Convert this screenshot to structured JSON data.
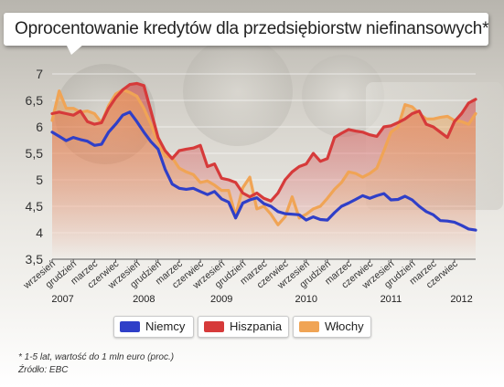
{
  "title": "Oprocentowanie kredytów dla przedsiębiorstw niefinansowych*",
  "footnote": "*  1-5 lat, wartość do 1 mln euro (proc.)",
  "source": "Źródło: EBC",
  "legend": [
    {
      "name": "Niemcy",
      "color": "#2f3fc8"
    },
    {
      "name": "Hiszpania",
      "color": "#d63a3a"
    },
    {
      "name": "Włochy",
      "color": "#f0a455"
    }
  ],
  "chart_data": {
    "type": "line",
    "title": "Oprocentowanie kredytów dla przedsiębiorstw niefinansowych*",
    "xlabel": "",
    "ylabel": "",
    "ylim": [
      3.5,
      7
    ],
    "y_ticks": [
      "3,5",
      "4",
      "4,5",
      "5",
      "5,5",
      "6",
      "6,5",
      "7"
    ],
    "y_tick_values": [
      3.5,
      4,
      4.5,
      5,
      5.5,
      6,
      6.5,
      7
    ],
    "grid": true,
    "legend_position": "bottom",
    "x_tick_labels": [
      "wrzesień",
      "grudzień",
      "marzec",
      "czerwiec",
      "wrzesień",
      "grudzień",
      "marzec",
      "czerwiec",
      "wrzesień",
      "grudzień",
      "marzec",
      "czerwiec",
      "wrzesień",
      "grudzień",
      "marzec",
      "czerwiec",
      "wrzesień",
      "grudzień",
      "marzec",
      "czerwiec"
    ],
    "x_tick_months": [
      0,
      3,
      6,
      9,
      12,
      15,
      18,
      21,
      24,
      27,
      30,
      33,
      36,
      39,
      42,
      45,
      48,
      51,
      54,
      57
    ],
    "year_labels": [
      "2007",
      "2008",
      "2009",
      "2010",
      "2011",
      "2012"
    ],
    "year_label_months": [
      1.5,
      13,
      24,
      36,
      48,
      58
    ],
    "x": [
      "2007-09",
      "2007-10",
      "2007-11",
      "2007-12",
      "2008-01",
      "2008-02",
      "2008-03",
      "2008-04",
      "2008-05",
      "2008-06",
      "2008-07",
      "2008-08",
      "2008-09",
      "2008-10",
      "2008-11",
      "2008-12",
      "2009-01",
      "2009-02",
      "2009-03",
      "2009-04",
      "2009-05",
      "2009-06",
      "2009-07",
      "2009-08",
      "2009-09",
      "2009-10",
      "2009-11",
      "2009-12",
      "2010-01",
      "2010-02",
      "2010-03",
      "2010-04",
      "2010-05",
      "2010-06",
      "2010-07",
      "2010-08",
      "2010-09",
      "2010-10",
      "2010-11",
      "2010-12",
      "2011-01",
      "2011-02",
      "2011-03",
      "2011-04",
      "2011-05",
      "2011-06",
      "2011-07",
      "2011-08",
      "2011-09",
      "2011-10",
      "2011-11",
      "2011-12",
      "2012-01",
      "2012-02",
      "2012-03",
      "2012-04",
      "2012-05",
      "2012-06",
      "2012-07",
      "2012-08",
      "2012-09"
    ],
    "series": [
      {
        "name": "Niemcy",
        "color": "#2f3fc8",
        "values": [
          5.9,
          5.82,
          5.74,
          5.8,
          5.76,
          5.73,
          5.65,
          5.67,
          5.9,
          6.05,
          6.22,
          6.28,
          6.1,
          5.9,
          5.72,
          5.58,
          5.2,
          4.92,
          4.84,
          4.82,
          4.84,
          4.78,
          4.72,
          4.78,
          4.64,
          4.58,
          4.28,
          4.56,
          4.62,
          4.66,
          4.55,
          4.5,
          4.4,
          4.36,
          4.35,
          4.34,
          4.24,
          4.3,
          4.25,
          4.24,
          4.38,
          4.5,
          4.56,
          4.63,
          4.7,
          4.65,
          4.7,
          4.74,
          4.62,
          4.63,
          4.69,
          4.62,
          4.5,
          4.4,
          4.34,
          4.23,
          4.22,
          4.2,
          4.14,
          4.07,
          4.05
        ]
      },
      {
        "name": "Hiszpania",
        "color": "#d63a3a",
        "values": [
          6.25,
          6.28,
          6.25,
          6.22,
          6.3,
          6.1,
          6.05,
          6.08,
          6.35,
          6.55,
          6.7,
          6.8,
          6.82,
          6.78,
          6.3,
          5.8,
          5.55,
          5.4,
          5.55,
          5.58,
          5.6,
          5.65,
          5.25,
          5.3,
          5.03,
          5.0,
          4.95,
          4.75,
          4.68,
          4.75,
          4.65,
          4.6,
          4.75,
          5.0,
          5.15,
          5.25,
          5.3,
          5.5,
          5.35,
          5.4,
          5.8,
          5.88,
          5.95,
          5.92,
          5.9,
          5.85,
          5.82,
          6.0,
          6.02,
          6.08,
          6.15,
          6.25,
          6.3,
          6.05,
          6.0,
          5.9,
          5.8,
          6.1,
          6.25,
          6.45,
          6.52
        ]
      },
      {
        "name": "Włochy",
        "color": "#f0a455",
        "values": [
          6.12,
          6.68,
          6.35,
          6.35,
          6.28,
          6.3,
          6.25,
          6.08,
          6.4,
          6.62,
          6.7,
          6.65,
          6.58,
          6.35,
          6.05,
          5.7,
          5.45,
          5.42,
          5.22,
          5.15,
          5.1,
          4.95,
          4.98,
          4.9,
          4.8,
          4.8,
          4.32,
          4.85,
          5.05,
          4.45,
          4.5,
          4.35,
          4.15,
          4.3,
          4.68,
          4.28,
          4.35,
          4.45,
          4.5,
          4.65,
          4.82,
          4.95,
          5.15,
          5.12,
          5.05,
          5.12,
          5.22,
          5.55,
          5.9,
          6.0,
          6.42,
          6.38,
          6.25,
          6.15,
          6.15,
          6.18,
          6.2,
          6.12,
          6.1,
          6.05,
          6.25
        ]
      }
    ]
  }
}
